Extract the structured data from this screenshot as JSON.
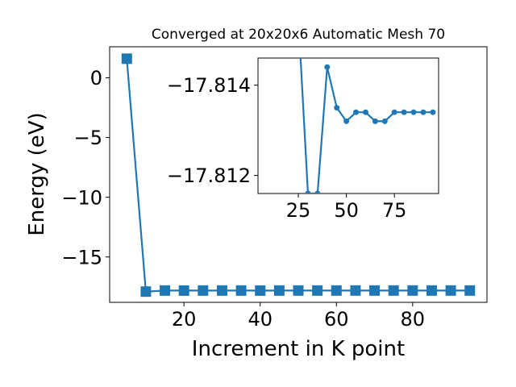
{
  "chart_data": [
    {
      "type": "line",
      "title": "Converged at 20x20x6 Automatic Mesh 70",
      "xlabel": "Increment in K point",
      "ylabel": "Energy (eV)",
      "xlim": [
        0.5,
        99.5
      ],
      "ylim": [
        -18.8,
        2.6
      ],
      "xticks": [
        20,
        40,
        60,
        80
      ],
      "yticks": [
        0,
        -5,
        -10,
        -15
      ],
      "ytick_labels": [
        "0",
        "−5",
        "−10",
        "−15"
      ],
      "marker": "square",
      "color": "#1f77b4",
      "grid": false,
      "series": [
        {
          "x": [
            5,
            10,
            15,
            20,
            25,
            30,
            35,
            40,
            45,
            50,
            55,
            60,
            65,
            70,
            75,
            80,
            85,
            90,
            95
          ],
          "y": [
            1.6,
            -17.9,
            -17.81,
            -17.815,
            -17.81,
            -17.81,
            -17.81,
            -17.815,
            -17.81,
            -17.81,
            -17.81,
            -17.81,
            -17.81,
            -17.81,
            -17.81,
            -17.81,
            -17.81,
            -17.81,
            -17.81
          ]
        }
      ]
    },
    {
      "type": "line",
      "inset": true,
      "title": "",
      "xlabel": "",
      "ylabel": "",
      "xlim": [
        4,
        98
      ],
      "ylim": [
        -17.8116,
        -17.8146
      ],
      "xticks": [
        25,
        50,
        75
      ],
      "yticks": [
        -17.814,
        -17.812
      ],
      "ytick_labels": [
        "−17.814",
        "−17.812"
      ],
      "marker": "circle",
      "color": "#1f77b4",
      "grid": false,
      "series": [
        {
          "x": [
            25,
            30,
            35,
            40,
            45,
            50,
            55,
            60,
            65,
            70,
            75,
            80,
            85,
            90,
            95
          ],
          "y": [
            -17.8155,
            -17.8116,
            -17.8116,
            -17.8144,
            -17.8135,
            -17.8132,
            -17.8134,
            -17.8134,
            -17.8132,
            -17.8132,
            -17.8134,
            -17.8134,
            -17.8134,
            -17.8134,
            -17.8134
          ]
        }
      ]
    }
  ]
}
